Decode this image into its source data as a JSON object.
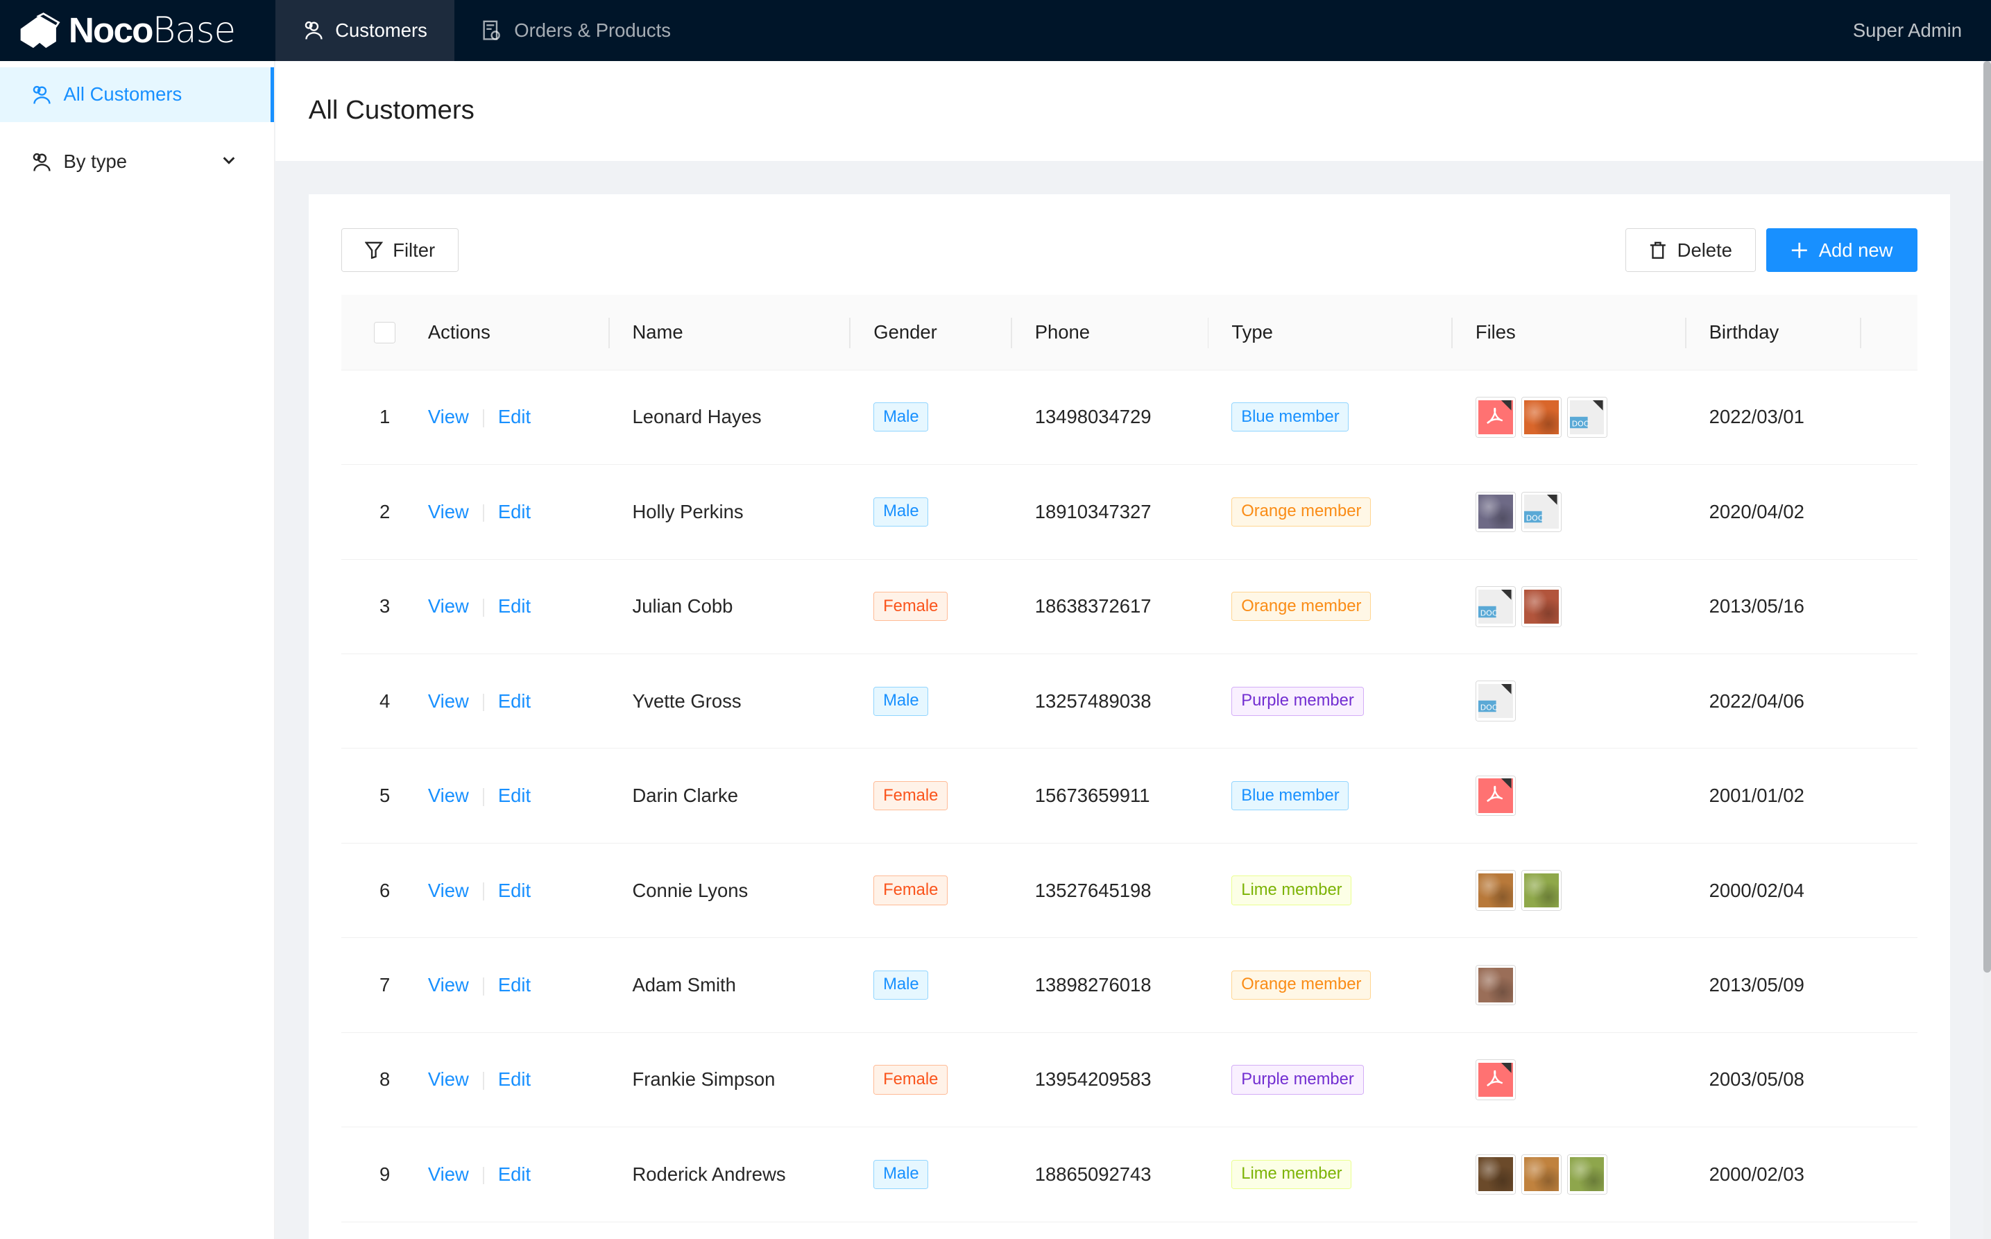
{
  "header": {
    "logo_bold": "Noco",
    "logo_light": "Base",
    "tabs": [
      {
        "label": "Customers",
        "icon": "team-icon",
        "active": true
      },
      {
        "label": "Orders & Products",
        "icon": "file-done-icon",
        "active": false
      }
    ],
    "user": "Super Admin"
  },
  "sidebar": {
    "items": [
      {
        "label": "All Customers",
        "active": true
      },
      {
        "label": "By type",
        "expandable": true
      }
    ]
  },
  "page": {
    "title": "All Customers"
  },
  "toolbar": {
    "filter": "Filter",
    "delete": "Delete",
    "add_new": "Add new"
  },
  "table": {
    "columns": [
      "Actions",
      "Name",
      "Gender",
      "Phone",
      "Type",
      "Files",
      "Birthday"
    ],
    "view_label": "View",
    "edit_label": "Edit",
    "rows": [
      {
        "no": "1",
        "name": "Leonard Hayes",
        "gender": "Male",
        "phone": "13498034729",
        "type": "Blue member",
        "files": [
          {
            "kind": "pdf"
          },
          {
            "kind": "image",
            "color": "#d9662b"
          },
          {
            "kind": "doc"
          }
        ],
        "birthday": "2022/03/01"
      },
      {
        "no": "2",
        "name": "Holly Perkins",
        "gender": "Male",
        "phone": "18910347327",
        "type": "Orange member",
        "files": [
          {
            "kind": "image",
            "color": "#6e6a86"
          },
          {
            "kind": "doc"
          }
        ],
        "birthday": "2020/04/02"
      },
      {
        "no": "3",
        "name": "Julian Cobb",
        "gender": "Female",
        "phone": "18638372617",
        "type": "Orange member",
        "files": [
          {
            "kind": "doc"
          },
          {
            "kind": "image",
            "color": "#b2553c"
          }
        ],
        "birthday": "2013/05/16"
      },
      {
        "no": "4",
        "name": "Yvette Gross",
        "gender": "Male",
        "phone": "13257489038",
        "type": "Purple member",
        "files": [
          {
            "kind": "doc"
          }
        ],
        "birthday": "2022/04/06"
      },
      {
        "no": "5",
        "name": "Darin Clarke",
        "gender": "Female",
        "phone": "15673659911",
        "type": "Blue member",
        "files": [
          {
            "kind": "pdf"
          }
        ],
        "birthday": "2001/01/02"
      },
      {
        "no": "6",
        "name": "Connie Lyons",
        "gender": "Female",
        "phone": "13527645198",
        "type": "Lime member",
        "files": [
          {
            "kind": "image",
            "color": "#b8793a"
          },
          {
            "kind": "image",
            "color": "#8fa84a"
          }
        ],
        "birthday": "2000/02/04"
      },
      {
        "no": "7",
        "name": "Adam Smith",
        "gender": "Male",
        "phone": "13898276018",
        "type": "Orange member",
        "files": [
          {
            "kind": "image",
            "color": "#9a6e58"
          }
        ],
        "birthday": "2013/05/09"
      },
      {
        "no": "8",
        "name": "Frankie Simpson",
        "gender": "Female",
        "phone": "13954209583",
        "type": "Purple member",
        "files": [
          {
            "kind": "pdf"
          }
        ],
        "birthday": "2003/05/08"
      },
      {
        "no": "9",
        "name": "Roderick Andrews",
        "gender": "Male",
        "phone": "18865092743",
        "type": "Lime member",
        "files": [
          {
            "kind": "image",
            "color": "#6b4a2a"
          },
          {
            "kind": "image",
            "color": "#c0823e"
          },
          {
            "kind": "image",
            "color": "#8ea64c"
          }
        ],
        "birthday": "2000/02/03"
      }
    ]
  },
  "tag_colors": {
    "Male": {
      "bg": "#e6f7ff",
      "border": "#91d5ff",
      "fg": "#1890ff"
    },
    "Female": {
      "bg": "#fff2e8",
      "border": "#ffbb96",
      "fg": "#fa541c"
    },
    "Blue member": {
      "bg": "#e6f7ff",
      "border": "#91d5ff",
      "fg": "#1890ff"
    },
    "Orange member": {
      "bg": "#fff7e6",
      "border": "#ffd591",
      "fg": "#fa8c16"
    },
    "Purple member": {
      "bg": "#f9f0ff",
      "border": "#d3adf7",
      "fg": "#722ed1"
    },
    "Lime member": {
      "bg": "#fcffe6",
      "border": "#eaff8f",
      "fg": "#7cb305"
    }
  },
  "colors": {
    "accent": "#1890ff",
    "header_bg": "#001529"
  }
}
